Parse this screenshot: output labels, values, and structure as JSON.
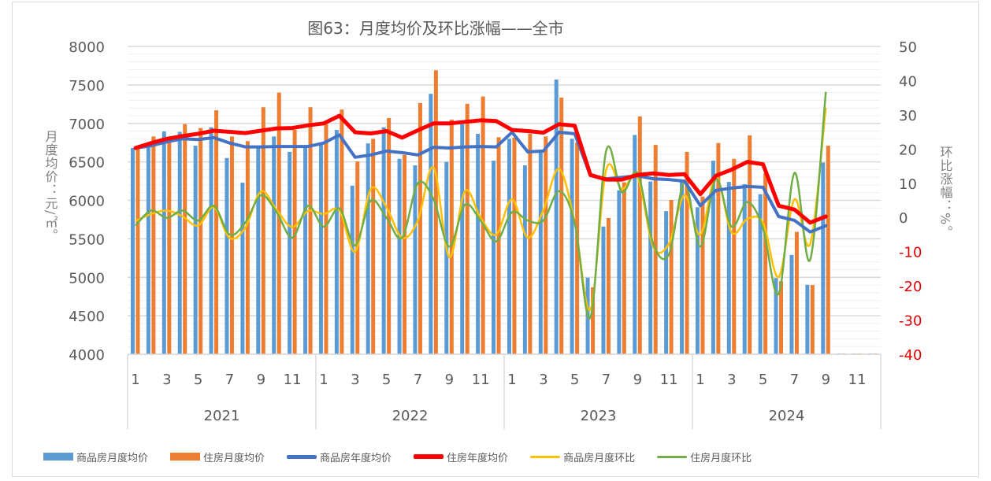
{
  "chart_data": {
    "type": "bar",
    "title": "图63：月度均价及环比涨幅——全市",
    "ylabel": "月度均价：元/㎡。",
    "y2label": "环比涨幅：%。",
    "ylim": [
      4000,
      8000
    ],
    "yticks": [
      "4000",
      "4500",
      "5000",
      "5500",
      "6000",
      "6500",
      "7000",
      "7500",
      "8000"
    ],
    "y2lim": [
      -40,
      50
    ],
    "y2ticks": [
      "-40",
      "-30",
      "-20",
      "-10",
      "0",
      "10",
      "20",
      "30",
      "40",
      "50"
    ],
    "years": [
      "2021",
      "2022",
      "2023",
      "2024"
    ],
    "month_ticks": [
      "1",
      "3",
      "5",
      "7",
      "9",
      "11"
    ],
    "grid": true,
    "legend_position": "bottom",
    "colors": {
      "bar1": "#5B9BD5",
      "bar2": "#ED7D31",
      "line1": "#4472C4",
      "line2": "#FF0000",
      "line3": "#FFC000",
      "line4": "#70AD47",
      "negative_tick": "#E00000"
    },
    "series": [
      {
        "name": "商品房月度均价",
        "kind": "bar",
        "axis": "left",
        "values": [
          6680,
          6700,
          6895,
          6890,
          6710,
          6950,
          6550,
          6230,
          6680,
          6830,
          6630,
          6700,
          6745,
          6915,
          6190,
          6740,
          6950,
          6540,
          6455,
          7385,
          6500,
          6990,
          6865,
          6515,
          6800,
          6455,
          6640,
          7570,
          6800,
          4995,
          5660,
          6130,
          6850,
          6245,
          5860,
          6250,
          5910,
          6515,
          6240,
          6210,
          6080,
          4990,
          5290,
          4903,
          6490,
          null,
          null,
          null
        ]
      },
      {
        "name": "住房月度均价",
        "kind": "bar",
        "axis": "left",
        "values": [
          6680,
          6830,
          6830,
          6990,
          6940,
          7170,
          6830,
          6770,
          7210,
          7400,
          6915,
          7210,
          6990,
          7180,
          6505,
          6800,
          7070,
          6590,
          7265,
          7690,
          7050,
          7255,
          7350,
          6820,
          6815,
          6865,
          6830,
          7335,
          6750,
          4870,
          5770,
          6235,
          7090,
          6720,
          6005,
          6630,
          6050,
          6745,
          6540,
          6845,
          6350,
          4950,
          5590,
          4900,
          6710,
          null,
          null,
          null
        ]
      },
      {
        "name": "商品房年度均价",
        "kind": "line",
        "axis": "left",
        "values": [
          6680,
          6710,
          6760,
          6800,
          6790,
          6815,
          6745,
          6695,
          6695,
          6700,
          6700,
          6700,
          6745,
          6850,
          6560,
          6590,
          6640,
          6620,
          6590,
          6690,
          6680,
          6695,
          6700,
          6695,
          6885,
          6630,
          6640,
          6885,
          6865,
          6320,
          6280,
          6300,
          6320,
          6280,
          6270,
          6250,
          5930,
          6130,
          6160,
          6180,
          6170,
          5790,
          5740,
          5590,
          5670,
          null,
          null,
          null
        ]
      },
      {
        "name": "住房年度均价",
        "kind": "line",
        "axis": "left",
        "values": [
          6680,
          6745,
          6800,
          6835,
          6865,
          6905,
          6890,
          6875,
          6905,
          6935,
          6940,
          6975,
          7000,
          7100,
          6885,
          6870,
          6900,
          6815,
          6910,
          7000,
          7000,
          7020,
          7040,
          7030,
          6915,
          6900,
          6880,
          6990,
          6970,
          6330,
          6270,
          6270,
          6330,
          6350,
          6330,
          6340,
          6080,
          6320,
          6400,
          6500,
          6470,
          5930,
          5880,
          5710,
          5790,
          null,
          null,
          null
        ]
      },
      {
        "name": "商品房月度环比",
        "kind": "smooth",
        "axis": "right",
        "values": [
          -1,
          1,
          2,
          0.3,
          -2.4,
          3,
          -6,
          -3,
          7.6,
          2.2,
          -2.8,
          1.9,
          1,
          2,
          -10,
          8.3,
          3,
          -5.9,
          -0.9,
          14.6,
          -11.6,
          7.7,
          -0.1,
          -5,
          5.3,
          -5.9,
          2.2,
          14.2,
          -1.6,
          -26.9,
          13.9,
          8.3,
          11.8,
          -8.5,
          -7.7,
          6.5,
          -5,
          11.9,
          -4.4,
          -0.4,
          -1.6,
          -17.4,
          5.3,
          -7.7,
          32.1,
          null,
          null,
          null
        ]
      },
      {
        "name": "住房月度环比",
        "kind": "smooth",
        "axis": "right",
        "values": [
          -2.4,
          2,
          -0.1,
          2,
          -0.9,
          3.4,
          -5,
          -1.5,
          6.5,
          1.5,
          -5.9,
          3.4,
          -2.7,
          2.6,
          -8.1,
          4.9,
          -0.1,
          -5.9,
          10,
          5.3,
          -8.5,
          3.7,
          -0.9,
          -7,
          1.5,
          -0.9,
          -0.9,
          7.7,
          -1.6,
          -29.2,
          19.5,
          7.4,
          12.9,
          -7.7,
          -10.8,
          10.3,
          -8.5,
          11.2,
          -2.7,
          4.5,
          -3.2,
          -22.3,
          13,
          -12.4,
          36.7,
          null,
          null,
          null
        ]
      }
    ]
  }
}
